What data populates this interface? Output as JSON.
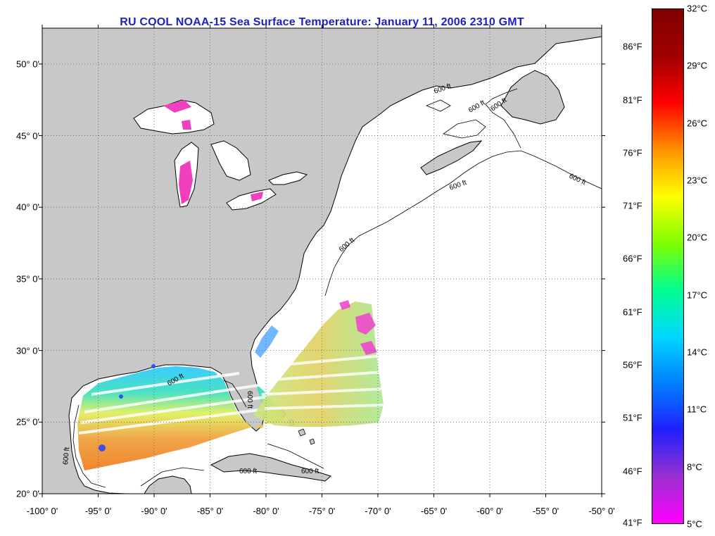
{
  "title": "RU COOL  NOAA-15  Sea Surface Temperature:  January 11, 2006 2310 GMT",
  "map": {
    "lon_range": [
      -100,
      -50
    ],
    "lat_range": [
      20,
      52.5
    ],
    "grid": true,
    "land_color": "#c8c8c8",
    "ocean_color": "#ffffff",
    "lat_labels": [
      {
        "lat": 50,
        "text": "50° 0'"
      },
      {
        "lat": 45,
        "text": "45° 0'"
      },
      {
        "lat": 40,
        "text": "40° 0'"
      },
      {
        "lat": 35,
        "text": "35° 0'"
      },
      {
        "lat": 30,
        "text": "30° 0'"
      },
      {
        "lat": 25,
        "text": "25° 0'"
      },
      {
        "lat": 20,
        "text": "20° 0'"
      }
    ],
    "lon_labels": [
      {
        "lon": -100,
        "text": "-100° 0'"
      },
      {
        "lon": -95,
        "text": "-95° 0'"
      },
      {
        "lon": -90,
        "text": "-90° 0'"
      },
      {
        "lon": -85,
        "text": "-85° 0'"
      },
      {
        "lon": -80,
        "text": "-80° 0'"
      },
      {
        "lon": -75,
        "text": "-75° 0'"
      },
      {
        "lon": -70,
        "text": "-70° 0'"
      },
      {
        "lon": -65,
        "text": "-65° 0'"
      },
      {
        "lon": -60,
        "text": "-60° 0'"
      },
      {
        "lon": -55,
        "text": "-55° 0'"
      },
      {
        "lon": -50,
        "text": "-50° 0'"
      }
    ],
    "isobath_label": "600 ft"
  },
  "colorbar": {
    "celsius_range": [
      5,
      32
    ],
    "stops": [
      "#ff00ff",
      "#9b30d0",
      "#2020ff",
      "#0080ff",
      "#00d8ff",
      "#00ff90",
      "#80ff00",
      "#ffff00",
      "#ff9000",
      "#ff0000",
      "#a00000",
      "#800000"
    ],
    "celsius_labels": [
      {
        "value": 32,
        "text": "32°C"
      },
      {
        "value": 29,
        "text": "29°C"
      },
      {
        "value": 26,
        "text": "26°C"
      },
      {
        "value": 23,
        "text": "23°C"
      },
      {
        "value": 20,
        "text": "20°C"
      },
      {
        "value": 17,
        "text": "17°C"
      },
      {
        "value": 14,
        "text": "14°C"
      },
      {
        "value": 11,
        "text": "11°C"
      },
      {
        "value": 8,
        "text": "8°C"
      },
      {
        "value": 5,
        "text": "5°C"
      }
    ],
    "fahrenheit_labels": [
      {
        "value": 86,
        "text": "86°F"
      },
      {
        "value": 81,
        "text": "81°F"
      },
      {
        "value": 76,
        "text": "76°F"
      },
      {
        "value": 71,
        "text": "71°F"
      },
      {
        "value": 66,
        "text": "66°F"
      },
      {
        "value": 61,
        "text": "61°F"
      },
      {
        "value": 56,
        "text": "56°F"
      },
      {
        "value": 51,
        "text": "51°F"
      },
      {
        "value": 46,
        "text": "46°F"
      },
      {
        "value": 41,
        "text": "41°F"
      }
    ]
  }
}
